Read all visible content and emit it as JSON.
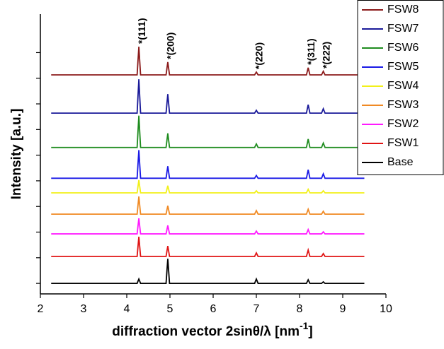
{
  "chart_data": {
    "type": "line",
    "ylabel": "Intensity [a.u.]",
    "xlabel": "diffraction vector 2sinθ/λ [nm",
    "xlabel_sup": "-1",
    "xlabel_end": "]",
    "xlim": [
      2,
      10
    ],
    "xticks": [
      2,
      3,
      4,
      5,
      6,
      7,
      8,
      9,
      10
    ],
    "ylim": [
      -0.41,
      10.5
    ],
    "yticks": [
      0,
      1,
      2,
      3,
      4,
      5,
      6,
      7,
      8,
      9
    ],
    "ytick_labels": false,
    "legend": "upper right",
    "annotations": [
      {
        "text": "*(111)",
        "x": 4.28
      },
      {
        "text": "*(200)",
        "x": 4.95
      },
      {
        "text": "*(220)",
        "x": 7.0
      },
      {
        "text": "*(311)",
        "x": 8.2
      },
      {
        "text": "*(222)",
        "x": 8.55
      }
    ],
    "x": [
      2.25,
      4.24,
      4.28,
      4.32,
      4.91,
      4.95,
      4.99,
      6.96,
      7.0,
      7.04,
      8.16,
      8.2,
      8.24,
      8.51,
      8.55,
      8.59,
      9.5
    ],
    "series": [
      {
        "name": "FSW8",
        "color": "#8b1a1a",
        "values": [
          8.13,
          8.13,
          9.23,
          8.13,
          8.13,
          8.63,
          8.13,
          8.13,
          8.24,
          8.13,
          8.13,
          8.41,
          8.13,
          8.13,
          8.27,
          8.13,
          8.13
        ]
      },
      {
        "name": "FSW7",
        "color": "#1a1a99",
        "values": [
          6.64,
          6.64,
          7.96,
          6.64,
          6.64,
          7.38,
          6.64,
          6.64,
          6.75,
          6.64,
          6.64,
          6.97,
          6.64,
          6.64,
          6.81,
          6.64,
          6.64
        ]
      },
      {
        "name": "FSW6",
        "color": "#1e8c1e",
        "values": [
          5.3,
          5.3,
          6.54,
          5.3,
          5.3,
          5.85,
          5.3,
          5.3,
          5.44,
          5.3,
          5.3,
          5.63,
          5.3,
          5.3,
          5.47,
          5.3,
          5.3
        ]
      },
      {
        "name": "FSW5",
        "color": "#1a1ae6",
        "values": [
          4.1,
          4.1,
          5.2,
          4.1,
          4.1,
          4.57,
          4.1,
          4.1,
          4.21,
          4.1,
          4.1,
          4.43,
          4.1,
          4.1,
          4.27,
          4.1,
          4.1
        ]
      },
      {
        "name": "FSW4",
        "color": "#f2f01a",
        "values": [
          3.53,
          3.53,
          4.03,
          3.53,
          3.53,
          3.81,
          3.53,
          3.53,
          3.61,
          3.53,
          3.53,
          3.67,
          3.53,
          3.53,
          3.61,
          3.53,
          3.53
        ]
      },
      {
        "name": "FSW3",
        "color": "#f08a24",
        "values": [
          2.7,
          2.7,
          3.39,
          2.7,
          2.7,
          3.03,
          2.7,
          2.7,
          2.84,
          2.7,
          2.7,
          2.89,
          2.7,
          2.7,
          2.81,
          2.7,
          2.7
        ]
      },
      {
        "name": "FSW2",
        "color": "#ff1aff",
        "values": [
          1.93,
          1.93,
          2.54,
          1.93,
          1.93,
          2.26,
          1.93,
          1.93,
          2.04,
          1.93,
          1.93,
          2.1,
          1.93,
          1.93,
          2.01,
          1.93,
          1.93
        ]
      },
      {
        "name": "FSW1",
        "color": "#e01414",
        "values": [
          1.05,
          1.05,
          1.82,
          1.05,
          1.05,
          1.46,
          1.05,
          1.05,
          1.19,
          1.05,
          1.05,
          1.3,
          1.05,
          1.05,
          1.16,
          1.05,
          1.05
        ]
      },
      {
        "name": "Base",
        "color": "#000000",
        "values": [
          0,
          0,
          0.17,
          0,
          0,
          0.96,
          0,
          0,
          0.17,
          0,
          0,
          0.14,
          0,
          0,
          0.06,
          0,
          0
        ]
      }
    ]
  }
}
